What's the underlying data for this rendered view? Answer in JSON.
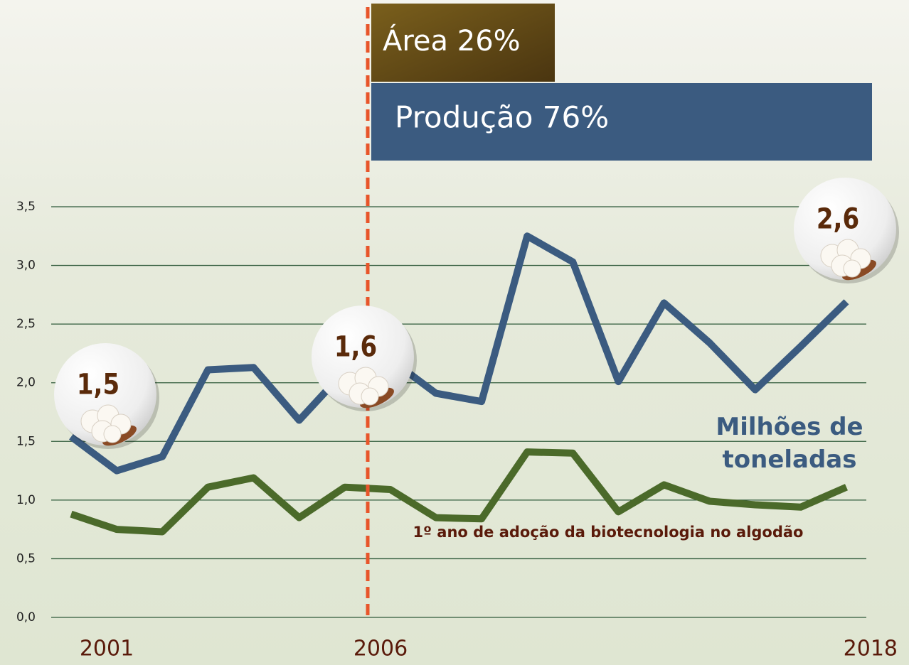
{
  "chart_data": {
    "type": "line",
    "categories": [
      "2001",
      null,
      null,
      null,
      null,
      null,
      null,
      "2006",
      null,
      null,
      null,
      null,
      null,
      null,
      null,
      null,
      null,
      "2018"
    ],
    "series": [
      {
        "name": "Milhões de toneladas",
        "color": "#3b5b80",
        "values": [
          1.54,
          1.25,
          1.37,
          2.11,
          2.13,
          1.68,
          2.1,
          2.2,
          1.91,
          1.84,
          3.25,
          3.03,
          2.01,
          2.68,
          2.34,
          1.94,
          2.31,
          2.69
        ]
      },
      {
        "color": "#4b6a2a",
        "values": [
          0.88,
          0.75,
          0.73,
          1.11,
          1.19,
          0.85,
          1.11,
          1.09,
          0.85,
          0.84,
          1.41,
          1.4,
          0.9,
          1.13,
          0.99,
          0.96,
          0.94,
          1.11
        ]
      }
    ],
    "ylim": [
      0,
      3.5
    ],
    "yticks": [
      {
        "value": 0,
        "label": "0,0"
      },
      {
        "value": 0.5,
        "label": "0,5"
      },
      {
        "value": 1,
        "label": "1,0"
      },
      {
        "value": 1.5,
        "label": "1,5"
      },
      {
        "value": 2,
        "label": "2,0"
      },
      {
        "value": 2.5,
        "label": "2,5"
      },
      {
        "value": 3,
        "label": "3,0"
      },
      {
        "value": 3.5,
        "label": "3,5"
      }
    ],
    "grid": true,
    "annotations": [
      "Área 26%",
      "Produção 76%",
      "1,5",
      "1,6",
      "2,6",
      "1º ano de adoção da biotecnologia no algodão"
    ]
  }
}
